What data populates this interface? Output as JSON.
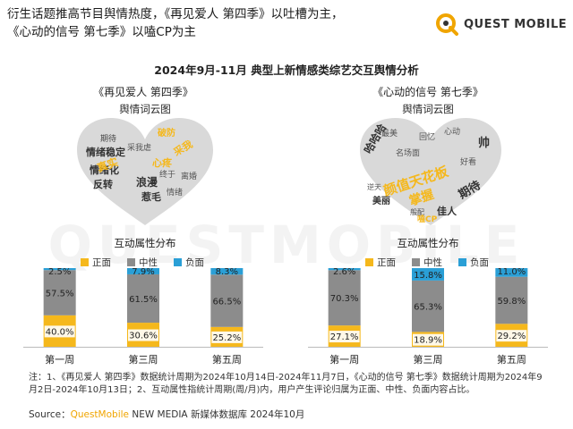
{
  "headline": {
    "line1": "衍生话题推高节目舆情热度，《再见爱人 第四季》以吐槽为主，",
    "line2": "《心动的信号 第七季》以嗑CP为主"
  },
  "logo": {
    "text": "QUEST MOBILE"
  },
  "watermark": "QUESTMOBILE",
  "subtitle": "2024年9月-11月 典型上新情感类综艺交互舆情分析",
  "shows": [
    {
      "title": "《再见爱人 第四季》",
      "cloud_label": "舆情词云图",
      "attr_label": "互动属性分布",
      "words": [
        "期待",
        "情绪稳定",
        "情绪化",
        "反转",
        "浪漫",
        "惹毛",
        "真实",
        "心疼",
        "采我",
        "破防",
        "采我虐",
        "离婚",
        "情绪",
        "终于"
      ]
    },
    {
      "title": "《心动的信号 第七季》",
      "cloud_label": "舆情词云图",
      "attr_label": "互动属性分布",
      "words": [
        "哈哈哈",
        "颜值天花板",
        "掌握",
        "期待",
        "美丽",
        "佳人",
        "般配",
        "嗑CP",
        "帅",
        "最美",
        "名场面",
        "逆天",
        "回忆",
        "心动",
        "好看"
      ]
    }
  ],
  "legend": [
    {
      "label": "正面",
      "color": "#f5b81c"
    },
    {
      "label": "中性",
      "color": "#8c8c8c"
    },
    {
      "label": "负面",
      "color": "#2a9fd6"
    }
  ],
  "chart_data": [
    {
      "type": "bar",
      "stacked": true,
      "title": "《再见爱人 第四季》",
      "categories": [
        "第一周",
        "第三周",
        "第五周"
      ],
      "series": [
        {
          "name": "正面",
          "values": [
            40.0,
            30.6,
            25.2
          ],
          "labels": [
            "40.0%",
            "30.6%",
            "25.2%"
          ],
          "color": "#f5b81c"
        },
        {
          "name": "中性",
          "values": [
            57.5,
            61.5,
            66.5
          ],
          "labels": [
            "57.5%",
            "61.5%",
            "66.5%"
          ],
          "color": "#8c8c8c"
        },
        {
          "name": "负面",
          "values": [
            2.5,
            7.9,
            8.3
          ],
          "labels": [
            "2.5%",
            "7.9%",
            "8.3%"
          ],
          "color": "#2a9fd6"
        }
      ],
      "ylim": [
        0,
        100
      ]
    },
    {
      "type": "bar",
      "stacked": true,
      "title": "《心动的信号 第七季》",
      "categories": [
        "第一周",
        "第三周",
        "第五周"
      ],
      "series": [
        {
          "name": "正面",
          "values": [
            27.1,
            18.9,
            29.2
          ],
          "labels": [
            "27.1%",
            "18.9%",
            "29.2%"
          ],
          "color": "#f5b81c"
        },
        {
          "name": "中性",
          "values": [
            70.3,
            65.3,
            59.8
          ],
          "labels": [
            "70.3%",
            "65.3%",
            "59.8%"
          ],
          "color": "#8c8c8c"
        },
        {
          "name": "负面",
          "values": [
            2.6,
            15.8,
            11.0
          ],
          "labels": [
            "2.6%",
            "15.8%",
            "11.0%"
          ],
          "color": "#2a9fd6"
        }
      ],
      "ylim": [
        0,
        100
      ]
    }
  ],
  "note": "注：1、《再见爱人 第四季》数据统计周期为2024年10月14日-2024年11月7日，《心动的信号 第七季》数据统计周期为2024年9月2日-2024年10月13日；2、互动属性指统计周期(周/月)内，用户产生评论归属为正面、中性、负面内容占比。",
  "source": {
    "prefix": "Source：",
    "brand": "QuestMobile",
    "rest": " NEW MEDIA 新媒体数据库 2024年10月"
  }
}
